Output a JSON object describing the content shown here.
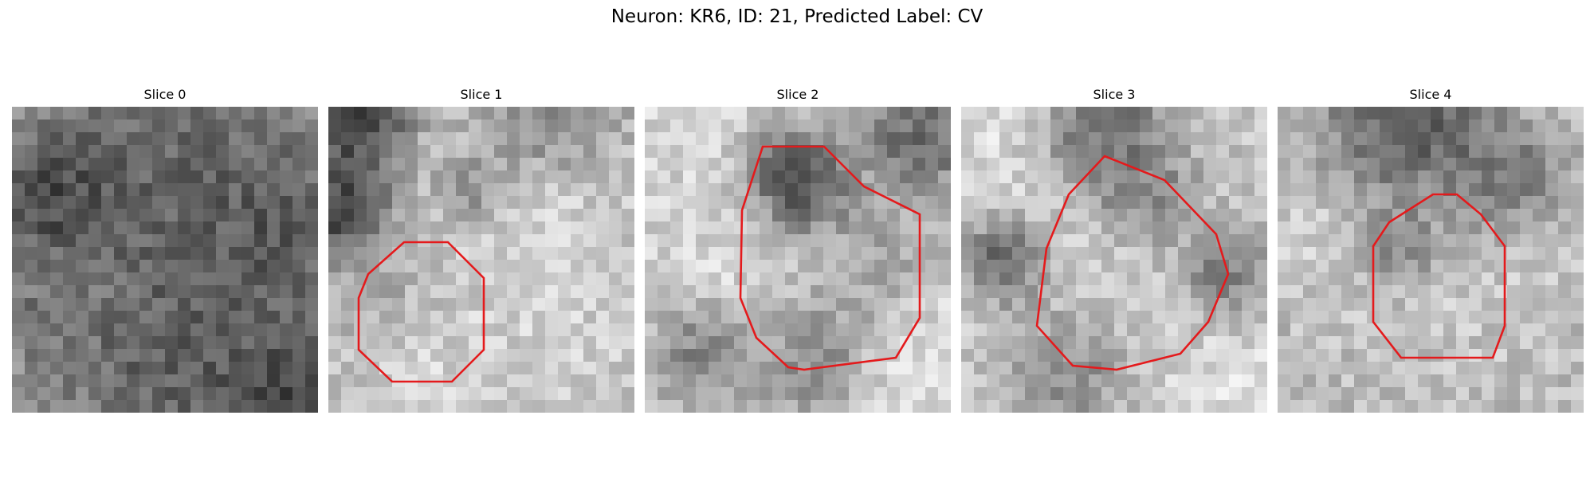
{
  "figure": {
    "title": "Neuron: KR6, ID: 21, Predicted Label: CV"
  },
  "panels": [
    {
      "title": "Slice 0",
      "has_contour": false
    },
    {
      "title": "Slice 1",
      "has_contour": true
    },
    {
      "title": "Slice 2",
      "has_contour": true
    },
    {
      "title": "Slice 3",
      "has_contour": true
    },
    {
      "title": "Slice 4",
      "has_contour": true
    }
  ],
  "colors": {
    "contour": "#e41a1c",
    "background": "#ffffff"
  },
  "image_style": {
    "colormap": "gray",
    "grid_cells": 24
  }
}
